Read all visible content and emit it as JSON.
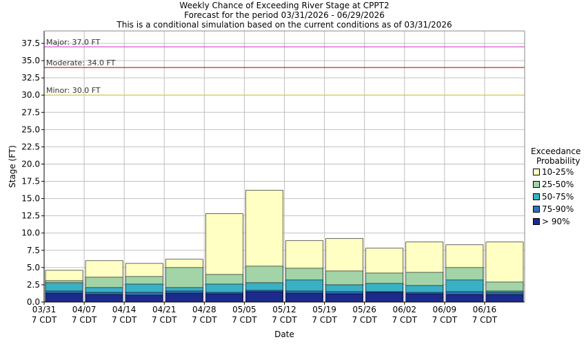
{
  "chart_data": {
    "type": "bar",
    "stacked": true,
    "title": "Weekly Chance of Exceeding River Stage at CPPT2",
    "subtitle": "Forecast for the period 03/31/2026 - 06/29/2026",
    "subtitle2": "This is a conditional simulation based on the current conditions as of 03/31/2026",
    "xlabel": "Date",
    "ylabel": "Stage (FT)",
    "ylim": [
      0,
      39.3
    ],
    "yticks": [
      "0.0",
      "2.5",
      "5.0",
      "7.5",
      "10.0",
      "12.5",
      "15.0",
      "17.5",
      "20.0",
      "22.5",
      "25.0",
      "27.5",
      "30.0",
      "32.5",
      "35.0",
      "37.5"
    ],
    "ytick_values": [
      0,
      2.5,
      5,
      7.5,
      10,
      12.5,
      15,
      17.5,
      20,
      22.5,
      25,
      27.5,
      30,
      32.5,
      35,
      37.5
    ],
    "grid": true,
    "x_tick_labels": [
      [
        "03/31",
        "7 CDT"
      ],
      [
        "04/07",
        "7 CDT"
      ],
      [
        "04/14",
        "7 CDT"
      ],
      [
        "04/21",
        "7 CDT"
      ],
      [
        "04/28",
        "7 CDT"
      ],
      [
        "05/05",
        "7 CDT"
      ],
      [
        "05/12",
        "7 CDT"
      ],
      [
        "05/19",
        "7 CDT"
      ],
      [
        "05/26",
        "7 CDT"
      ],
      [
        "06/02",
        "7 CDT"
      ],
      [
        "06/09",
        "7 CDT"
      ],
      [
        "06/16",
        "7 CDT"
      ]
    ],
    "legend_title": [
      "Exceedance",
      "Probability"
    ],
    "legend_position": "right",
    "series": [
      {
        "name": "> 90%",
        "color": "#1c2a8c",
        "values": [
          1.3,
          1.1,
          1.0,
          1.3,
          1.2,
          1.5,
          1.3,
          1.2,
          1.4,
          1.2,
          1.1,
          1.1
        ]
      },
      {
        "name": "75-90%",
        "color": "#2e74b8",
        "values": [
          1.6,
          1.4,
          1.4,
          1.6,
          1.4,
          1.7,
          1.6,
          1.5,
          1.5,
          1.4,
          1.5,
          1.4
        ]
      },
      {
        "name": "50-75%",
        "color": "#3ab0c5",
        "values": [
          2.8,
          2.1,
          2.6,
          2.1,
          2.6,
          2.8,
          3.2,
          2.5,
          2.7,
          2.4,
          3.2,
          1.6
        ]
      },
      {
        "name": "25-50%",
        "color": "#a2d4a8",
        "values": [
          3.1,
          3.6,
          3.7,
          5.0,
          4.0,
          5.2,
          4.9,
          4.5,
          4.2,
          4.3,
          5.0,
          2.9
        ]
      },
      {
        "name": "10-25%",
        "color": "#ffffc4",
        "values": [
          4.6,
          6.0,
          5.6,
          6.2,
          12.8,
          16.2,
          8.9,
          9.2,
          7.8,
          8.7,
          8.3,
          8.7
        ]
      }
    ],
    "thresholds": [
      {
        "label": "Major: 37.0 FT",
        "value": 37.0,
        "color": "#d040d0"
      },
      {
        "label": "Moderate: 34.0 FT",
        "value": 34.0,
        "color": "#d02030"
      },
      {
        "label": "Minor: 30.0 FT",
        "value": 30.0,
        "color": "#d8d040"
      }
    ]
  }
}
